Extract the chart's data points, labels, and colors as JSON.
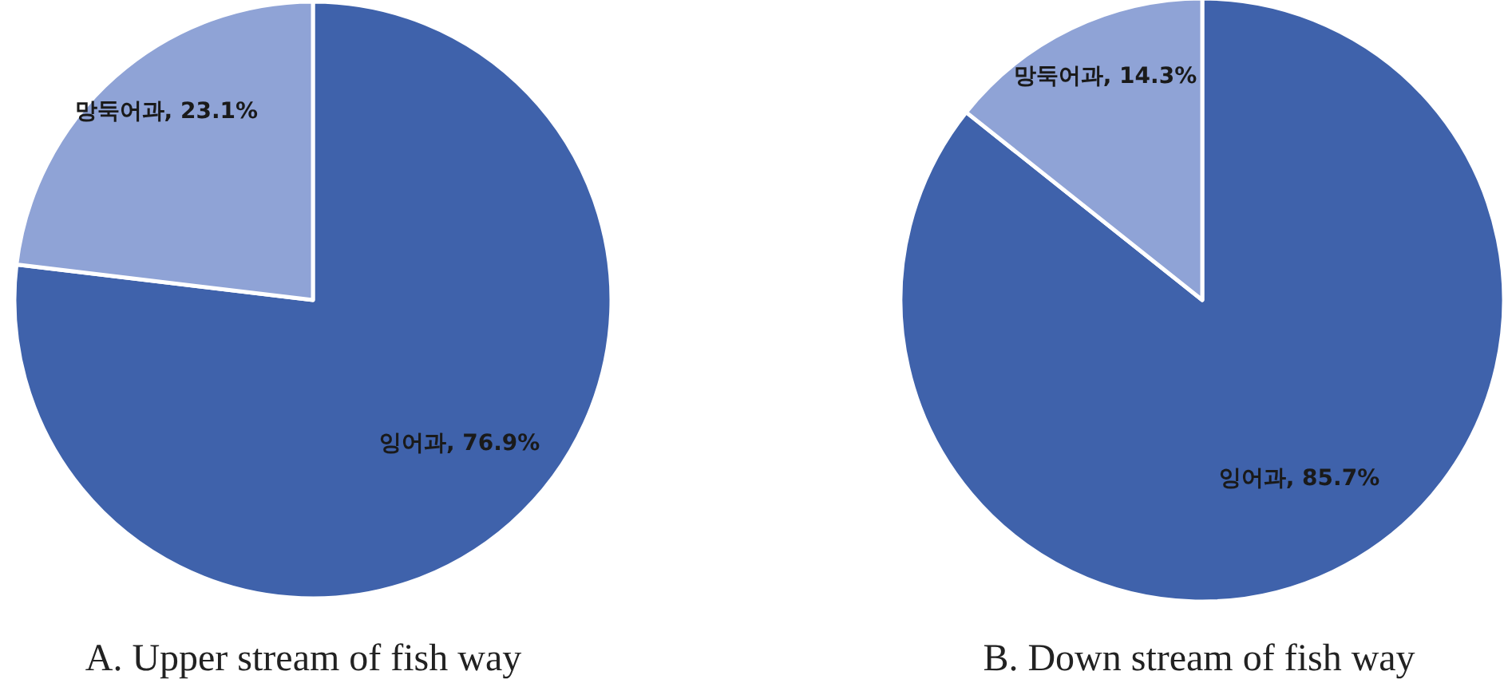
{
  "chart_data": [
    {
      "type": "pie",
      "title": "A. Upper stream of fish way",
      "categories": [
        "잉어과",
        "망둑어과"
      ],
      "values": [
        76.9,
        23.1
      ],
      "colors": [
        "#3f62ab",
        "#8fa3d6"
      ],
      "value_labels": [
        "76.9%",
        "23.1%"
      ]
    },
    {
      "type": "pie",
      "title": "B. Down stream of fish way",
      "categories": [
        "잉어과",
        "망둑어과"
      ],
      "values": [
        85.7,
        14.3
      ],
      "colors": [
        "#3f62ab",
        "#8fa3d6"
      ],
      "value_labels": [
        "85.7%",
        "14.3%"
      ]
    }
  ]
}
